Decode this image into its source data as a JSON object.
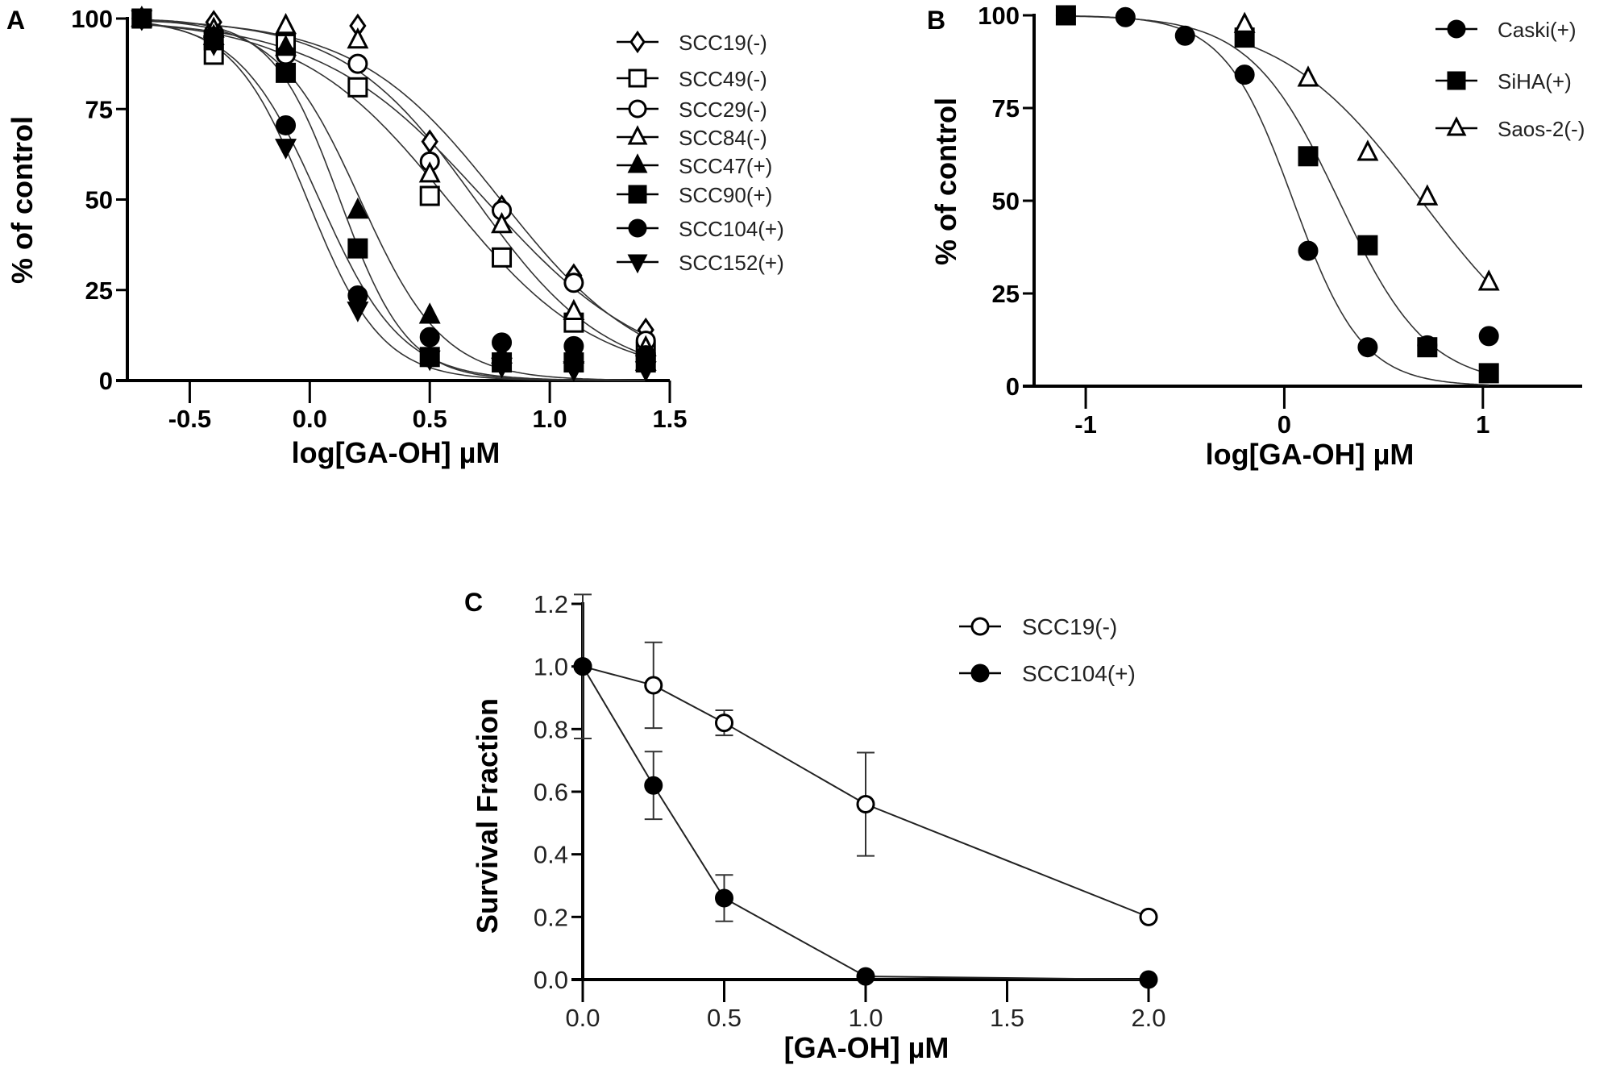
{
  "chart_data": [
    {
      "panel": "A",
      "type": "scatter",
      "fitted_curves": true,
      "xlabel": "log[GA-OH] µM",
      "ylabel": "% of control",
      "xlim": [
        -0.76,
        1.5
      ],
      "ylim": [
        0,
        100
      ],
      "xticks": [
        -0.5,
        0,
        0.5,
        1,
        1.5
      ],
      "xtick_labels": [
        "-0.5",
        "0.0",
        "0.5",
        "1.0",
        "1.5"
      ],
      "yticks": [
        0,
        25,
        50,
        75,
        100
      ],
      "ytick_labels": [
        "0",
        "25",
        "50",
        "75",
        "100"
      ],
      "grid": false,
      "legend": "right",
      "series": [
        {
          "name": "SCC19(-)",
          "marker": "diamond-open",
          "x": [
            -0.7,
            -0.4,
            -0.1,
            0.2,
            0.5,
            0.8,
            1.1,
            1.4
          ],
          "y": [
            100,
            99,
            95,
            98,
            66,
            48,
            29,
            14
          ]
        },
        {
          "name": "SCC49(-)",
          "marker": "square-open",
          "x": [
            -0.7,
            -0.4,
            -0.1,
            0.2,
            0.5,
            0.8,
            1.1,
            1.4
          ],
          "y": [
            100,
            90,
            93,
            81,
            51,
            34,
            16,
            8
          ]
        },
        {
          "name": "SCC29(-)",
          "marker": "circle-open",
          "x": [
            -0.7,
            -0.4,
            -0.1,
            0.2,
            0.5,
            0.8,
            1.1,
            1.4
          ],
          "y": [
            100,
            96,
            90,
            87.5,
            60.5,
            47,
            27,
            11
          ]
        },
        {
          "name": "SCC84(-)",
          "marker": "triangle-open",
          "x": [
            -0.7,
            -0.4,
            -0.1,
            0.2,
            0.5,
            0.8,
            1.1,
            1.4
          ],
          "y": [
            100,
            97,
            98,
            94,
            57,
            43,
            19,
            9
          ]
        },
        {
          "name": "SCC47(+)",
          "marker": "triangle-filled",
          "x": [
            -0.7,
            -0.4,
            -0.1,
            0.2,
            0.5,
            0.8,
            1.1,
            1.4
          ],
          "y": [
            100,
            95,
            92,
            47,
            18,
            7,
            7,
            5
          ]
        },
        {
          "name": "SCC90(+)",
          "marker": "square-filled",
          "x": [
            -0.7,
            -0.4,
            -0.1,
            0.2,
            0.5,
            0.8,
            1.1,
            1.4
          ],
          "y": [
            100,
            94,
            85,
            36.5,
            6.5,
            5,
            5,
            5
          ]
        },
        {
          "name": "SCC104(+)",
          "marker": "circle-filled",
          "x": [
            -0.7,
            -0.4,
            -0.1,
            0.2,
            0.5,
            0.8,
            1.1,
            1.4
          ],
          "y": [
            100,
            95,
            70.5,
            23.5,
            12,
            10.5,
            9.5,
            7
          ]
        },
        {
          "name": "SCC152(+)",
          "marker": "triangle-down-filled",
          "x": [
            -0.7,
            -0.4,
            -0.1,
            0.2,
            0.5,
            0.8,
            1.1,
            1.4
          ],
          "y": [
            100,
            93,
            64.5,
            19.5,
            6,
            4,
            3,
            3
          ]
        }
      ]
    },
    {
      "panel": "B",
      "type": "scatter",
      "fitted_curves": true,
      "xlabel": "log[GA-OH] µM",
      "ylabel": "% of control",
      "xlim": [
        -1.26,
        1.5
      ],
      "ylim": [
        0,
        100
      ],
      "xticks": [
        -1,
        0,
        1
      ],
      "xtick_labels": [
        "-1",
        "0",
        "1"
      ],
      "yticks": [
        0,
        25,
        50,
        75,
        100
      ],
      "ytick_labels": [
        "0",
        "25",
        "50",
        "75",
        "100"
      ],
      "grid": false,
      "legend": "top-right",
      "series": [
        {
          "name": "Caski(+)",
          "marker": "circle-filled",
          "x": [
            -1.1,
            -0.8,
            -0.5,
            -0.2,
            0.12,
            0.42,
            0.72,
            1.03
          ],
          "y": [
            100,
            99.5,
            94.5,
            84,
            36.5,
            10.5,
            11,
            13.5
          ]
        },
        {
          "name": "SiHA(+)",
          "marker": "square-filled",
          "x": [
            -1.1,
            -0.2,
            0.12,
            0.42,
            0.72,
            1.03
          ],
          "y": [
            100,
            94,
            62,
            38,
            10.5,
            3.5
          ]
        },
        {
          "name": "Saos-2(-)",
          "marker": "triangle-open",
          "x": [
            -0.2,
            0.12,
            0.42,
            0.72,
            1.03
          ],
          "y": [
            97.5,
            83,
            63,
            51,
            28
          ]
        }
      ]
    },
    {
      "panel": "C",
      "type": "line",
      "xlabel": "[GA-OH] µM",
      "ylabel": "Survival Fraction",
      "xlim": [
        0,
        2
      ],
      "ylim": [
        0,
        1.2
      ],
      "xticks": [
        0,
        0.5,
        1,
        1.5,
        2
      ],
      "xtick_labels": [
        "0.0",
        "0.5",
        "1.0",
        "1.5",
        "2.0"
      ],
      "yticks": [
        0,
        0.2,
        0.4,
        0.6,
        0.8,
        1.0,
        1.2
      ],
      "ytick_labels": [
        "0.0",
        "0.2",
        "0.4",
        "0.6",
        "0.8",
        "1.0",
        "1.2"
      ],
      "grid": false,
      "legend": "top-right",
      "series": [
        {
          "name": "SCC19(-)",
          "marker": "circle-open",
          "x": [
            0,
            0.25,
            0.5,
            1.0,
            2.0
          ],
          "y": [
            1.0,
            0.94,
            0.82,
            0.56,
            0.2
          ],
          "err": [
            0,
            0.137,
            0.04,
            0.165,
            0
          ]
        },
        {
          "name": "SCC104(+)",
          "marker": "circle-filled",
          "x": [
            0,
            0.25,
            0.5,
            1.0,
            2.0
          ],
          "y": [
            1.0,
            0.62,
            0.26,
            0.01,
            0.0
          ],
          "err": [
            0.23,
            0.108,
            0.074,
            0,
            0
          ]
        }
      ]
    }
  ]
}
